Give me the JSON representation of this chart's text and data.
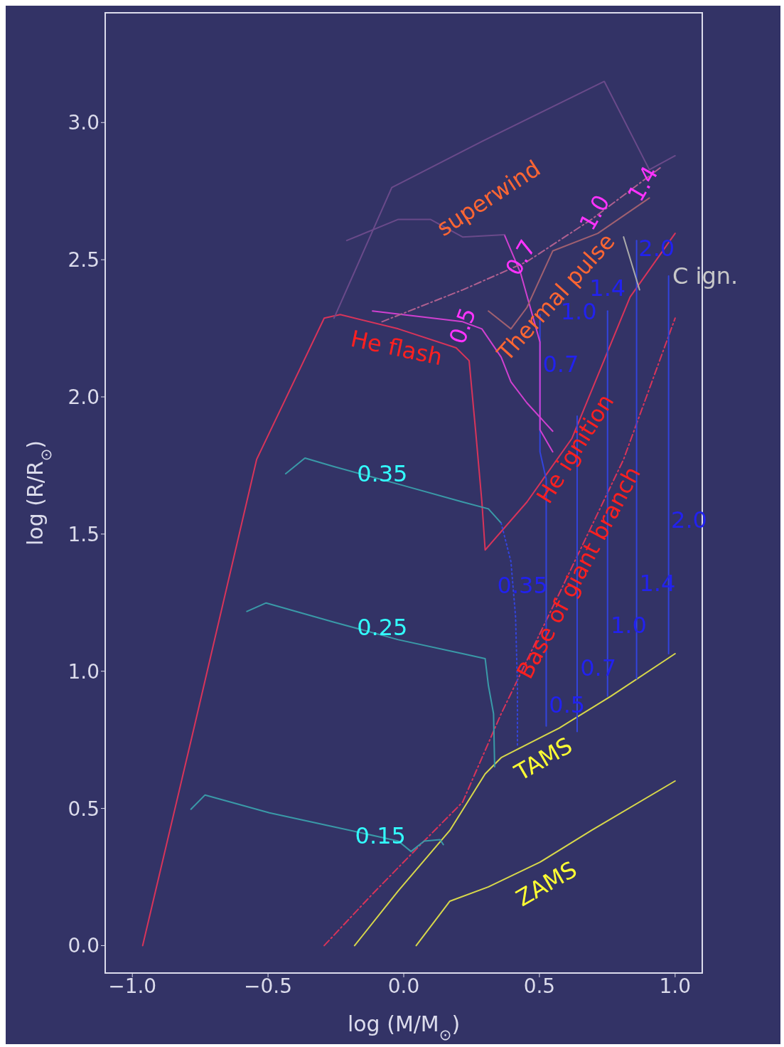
{
  "chart_data": {
    "type": "line",
    "xlabel": "log (M/M$_{⊙}$)",
    "ylabel": "log (R/R$_{⊙}$)",
    "xlim": [
      -1.1,
      1.1
    ],
    "ylim": [
      -0.1,
      3.4
    ],
    "xticks": [
      {
        "value": -1,
        "label": "−1.0"
      },
      {
        "value": -0.5,
        "label": "−0.5"
      },
      {
        "value": 0,
        "label": "0.0"
      },
      {
        "value": 0.5,
        "label": "0.5"
      },
      {
        "value": 1,
        "label": "1.0"
      }
    ],
    "yticks": [
      {
        "value": 0,
        "label": "0.0"
      },
      {
        "value": 0.5,
        "label": "0.5"
      },
      {
        "value": 1,
        "label": "1.0"
      },
      {
        "value": 1.5,
        "label": "1.5"
      },
      {
        "value": 2,
        "label": "2.0"
      },
      {
        "value": 2.5,
        "label": "2.5"
      },
      {
        "value": 3,
        "label": "3.0"
      }
    ],
    "series": [
      {
        "color": "#d8d84a",
        "x": [
          0.046,
          0.17,
          0.312,
          0.502,
          0.692,
          1.0
        ],
        "values": [
          0.0,
          0.162,
          0.214,
          0.304,
          0.42,
          0.6
        ]
      },
      {
        "color": "#d8d84a",
        "x": [
          -0.181,
          -0.02,
          0.17,
          0.3,
          0.359,
          0.573,
          0.763,
          1.0
        ],
        "values": [
          0.0,
          0.2,
          0.42,
          0.626,
          0.685,
          0.793,
          0.909,
          1.064
        ]
      },
      {
        "color": "#d8345a",
        "line_style": "dashed",
        "x": [
          -0.293,
          -0.115,
          0.075,
          0.217,
          0.359,
          0.573,
          0.81,
          1.0
        ],
        "values": [
          0.0,
          0.188,
          0.381,
          0.523,
          0.845,
          1.283,
          1.772,
          2.287
        ]
      },
      {
        "color": "#d8345a",
        "x": [
          -0.962,
          -0.779,
          -0.542,
          -0.293,
          -0.234,
          -0.02,
          0.193,
          0.241,
          0.265,
          0.288,
          0.3,
          0.454,
          0.62,
          0.834,
          1.0
        ],
        "values": [
          0.0,
          0.767,
          1.772,
          2.287,
          2.3,
          2.248,
          2.179,
          2.132,
          1.875,
          1.617,
          1.442,
          1.617,
          1.849,
          2.364,
          2.596
        ]
      },
      {
        "color": "#3a9aa8",
        "x": [
          -0.435,
          -0.364,
          -0.257,
          -0.02,
          0.217,
          0.312,
          0.359
        ],
        "values": [
          1.72,
          1.777,
          1.746,
          1.682,
          1.617,
          1.592,
          1.54
        ]
      },
      {
        "color": "#3a9aa8",
        "x": [
          -0.578,
          -0.507,
          -0.257,
          -0.02,
          0.217,
          0.3,
          0.312,
          0.331,
          0.335
        ],
        "values": [
          1.218,
          1.249,
          1.179,
          1.115,
          1.064,
          1.046,
          0.948,
          0.845,
          0.652
        ]
      },
      {
        "color": "#3a9aa8",
        "x": [
          -0.784,
          -0.732,
          -0.495,
          -0.257,
          -0.02,
          0.027,
          0.075,
          0.134,
          0.146
        ],
        "values": [
          0.497,
          0.549,
          0.484,
          0.433,
          0.381,
          0.343,
          0.381,
          0.386,
          0.368
        ]
      },
      {
        "color": "#3344dd",
        "line_style": "dotted",
        "x": [
          0.359,
          0.395,
          0.412,
          0.419,
          0.419
        ],
        "values": [
          1.54,
          1.4,
          1.2,
          0.95,
          0.73
        ]
      },
      {
        "color": "#3344dd",
        "x": [
          0.502,
          0.502,
          0.525,
          0.525
        ],
        "values": [
          2.3,
          1.8,
          1.7,
          0.8
        ]
      },
      {
        "color": "#3344dd",
        "x": [
          0.639,
          0.639
        ],
        "values": [
          1.93,
          0.78
        ]
      },
      {
        "color": "#3344dd",
        "x": [
          0.751,
          0.751
        ],
        "values": [
          2.313,
          0.909
        ]
      },
      {
        "color": "#3344dd",
        "x": [
          0.858,
          0.858
        ],
        "values": [
          2.57,
          0.973
        ]
      },
      {
        "color": "#3344dd",
        "x": [
          0.976,
          0.976
        ],
        "values": [
          2.441,
          1.064
        ]
      },
      {
        "color": "#d040d0",
        "x": [
          -0.115,
          0.217,
          0.288,
          0.359,
          0.395,
          0.454,
          0.549
        ],
        "values": [
          2.313,
          2.274,
          2.248,
          2.145,
          2.055,
          1.978,
          1.875
        ]
      },
      {
        "color": "#d040d0",
        "x": [
          0.371,
          0.431,
          0.502,
          0.502,
          0.549
        ],
        "values": [
          2.591,
          2.45,
          2.2,
          1.88,
          1.8
        ]
      },
      {
        "color": "#b06090",
        "line_style": "dashed",
        "x": [
          -0.08,
          0.217,
          0.454,
          0.692,
          0.953
        ],
        "values": [
          2.274,
          2.39,
          2.493,
          2.647,
          2.841
        ]
      },
      {
        "color": "#6a4a8a",
        "x": [
          -0.257,
          -0.044,
          0.288,
          0.739,
          0.905,
          1.0
        ],
        "values": [
          2.287,
          2.763,
          2.931,
          3.15,
          2.828,
          2.879
        ]
      },
      {
        "color": "#6a4a8a",
        "x": [
          -0.21,
          -0.02,
          0.098,
          0.217,
          0.371
        ],
        "values": [
          2.57,
          2.647,
          2.647,
          2.583,
          2.591
        ]
      },
      {
        "color": "#a06070",
        "x": [
          0.312,
          0.395,
          0.454,
          0.549,
          0.715,
          0.905
        ],
        "values": [
          2.313,
          2.248,
          2.326,
          2.532,
          2.596,
          2.725
        ]
      },
      {
        "color": "#aaaaaa",
        "x": [
          0.81,
          0.869
        ],
        "values": [
          2.583,
          2.39
        ]
      }
    ],
    "annotations": [
      "superwind",
      "Thermal pulse",
      "He flash",
      "He ignition",
      "Base of giant branch",
      "C ign.",
      "TAMS",
      "ZAMS",
      "0.35",
      "0.25",
      "0.15",
      "0.35",
      "0.5",
      "0.7",
      "1.0",
      "1.4",
      "2.0",
      "0.7",
      "1.0",
      "1.4",
      "2.0",
      "0.5",
      "0.7",
      "1.0",
      "1.4"
    ]
  }
}
